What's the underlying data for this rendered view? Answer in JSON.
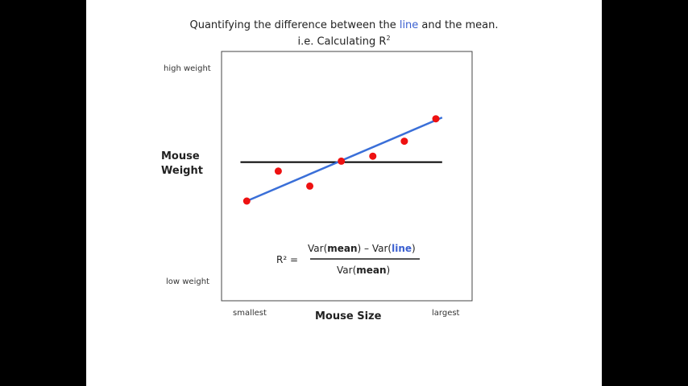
{
  "title": {
    "part1": "Quantifying the difference between the ",
    "highlight": "line",
    "part2": " and the mean.",
    "subtitle": "i.e. Calculating R",
    "superscript": "2"
  },
  "colors": {
    "points": "#ee1111",
    "fit_line": "#3a6fd8",
    "mean_line": "#000000",
    "highlight": "#3a5fd0"
  },
  "formula": {
    "lhs": "R² =",
    "num_a": "Var(",
    "num_b": "mean",
    "num_c": ") – Var(",
    "num_d": "line",
    "num_e": ")",
    "den_a": "Var(",
    "den_b": "mean",
    "den_c": ")"
  },
  "chart_data": {
    "type": "scatter",
    "xlabel": "Mouse Size",
    "ylabel": "Mouse Weight",
    "x_tick_labels": {
      "min": "smallest",
      "max": "largest"
    },
    "y_tick_labels": {
      "max": "high weight",
      "min": "low weight"
    },
    "grid": false,
    "xlim": [
      0.2,
      8.15
    ],
    "ylim": [
      0,
      10
    ],
    "points": [
      {
        "x": 1,
        "y": 4.0
      },
      {
        "x": 2,
        "y": 5.2
      },
      {
        "x": 3,
        "y": 4.6
      },
      {
        "x": 4,
        "y": 5.6
      },
      {
        "x": 5,
        "y": 5.8
      },
      {
        "x": 6,
        "y": 6.4
      },
      {
        "x": 7,
        "y": 7.3
      }
    ],
    "fit_line": {
      "x": [
        1,
        7.2
      ],
      "y": [
        4.0,
        7.35
      ]
    },
    "mean_line": {
      "y": 5.56,
      "x": [
        0.8,
        7.2
      ]
    }
  }
}
